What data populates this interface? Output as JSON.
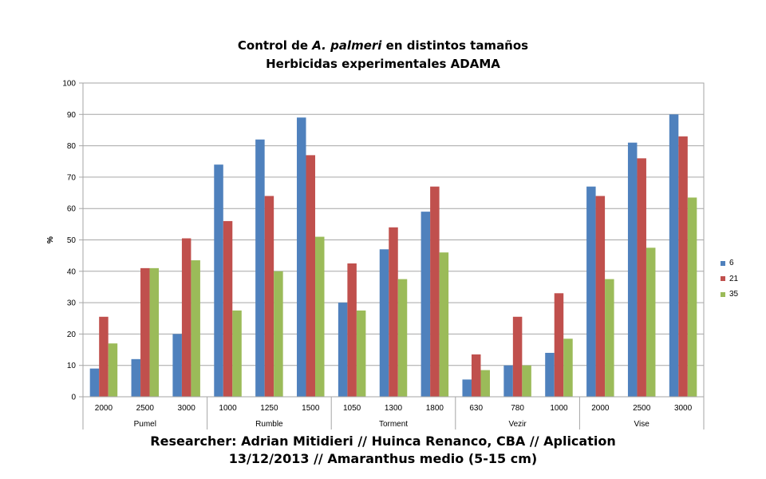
{
  "chart_data": {
    "type": "bar",
    "title_prefix": "Control de ",
    "title_italic": "A. palmeri",
    "title_suffix": " en distintos tamaños",
    "subtitle": "Herbicidas experimentales ADAMA",
    "ylabel": "%",
    "xlabel": "",
    "ylim": [
      0,
      100
    ],
    "yticks": [
      0,
      10,
      20,
      30,
      40,
      50,
      60,
      70,
      80,
      90,
      100
    ],
    "grid": true,
    "legend_position": "right",
    "groups": [
      {
        "name": "Pumel",
        "categories": [
          "2000",
          "2500",
          "3000"
        ]
      },
      {
        "name": "Rumble",
        "categories": [
          "1000",
          "1250",
          "1500"
        ]
      },
      {
        "name": "Torment",
        "categories": [
          "1050",
          "1300",
          "1800"
        ]
      },
      {
        "name": "Vezir",
        "categories": [
          "630",
          "780",
          "1000"
        ]
      },
      {
        "name": "Vise",
        "categories": [
          "2000",
          "2500",
          "3000"
        ]
      }
    ],
    "series": [
      {
        "name": "6",
        "color": "#4F81BD",
        "values": [
          9,
          12,
          20,
          74,
          82,
          89,
          30,
          47,
          59,
          5.5,
          10,
          14,
          67,
          81,
          90
        ]
      },
      {
        "name": "21",
        "color": "#C0504D",
        "values": [
          25.5,
          41,
          50.5,
          56,
          64,
          77,
          42.5,
          54,
          67,
          13.5,
          25.5,
          33,
          64,
          76,
          83
        ]
      },
      {
        "name": "35",
        "color": "#9BBB59",
        "values": [
          17,
          41,
          43.5,
          27.5,
          40,
          51,
          27.5,
          37.5,
          46,
          8.5,
          10,
          18.5,
          37.5,
          47.5,
          63.5
        ]
      }
    ]
  },
  "footer": {
    "line1": "Researcher: Adrian Mitidieri // Huinca Renanco, CBA // Aplication",
    "line2": "13/12/2013 // Amaranthus medio (5-15 cm)"
  }
}
